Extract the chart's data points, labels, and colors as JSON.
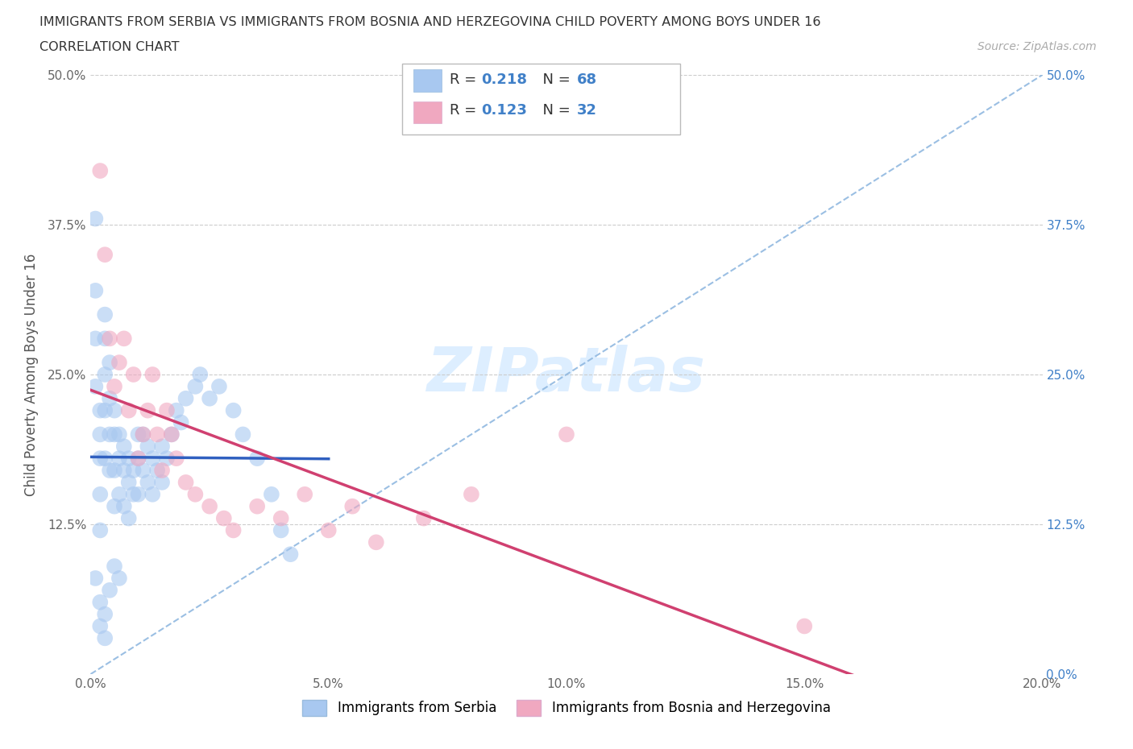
{
  "title_line1": "IMMIGRANTS FROM SERBIA VS IMMIGRANTS FROM BOSNIA AND HERZEGOVINA CHILD POVERTY AMONG BOYS UNDER 16",
  "title_line2": "CORRELATION CHART",
  "source_text": "Source: ZipAtlas.com",
  "ylabel": "Child Poverty Among Boys Under 16",
  "legend_label_serbia": "Immigrants from Serbia",
  "legend_label_bosnia": "Immigrants from Bosnia and Herzegovina",
  "R_serbia": 0.218,
  "N_serbia": 68,
  "R_bosnia": 0.123,
  "N_bosnia": 32,
  "color_serbia": "#a8c8f0",
  "color_bosnia": "#f0a8c0",
  "color_serbia_line": "#3060c0",
  "color_bosnia_line": "#d04070",
  "color_diag": "#90b8e0",
  "color_right_axis": "#4080c8",
  "xlim": [
    0.0,
    0.2
  ],
  "ylim": [
    0.0,
    0.5
  ],
  "xticks": [
    0.0,
    0.05,
    0.1,
    0.15,
    0.2
  ],
  "xticklabels": [
    "0.0%",
    "5.0%",
    "10.0%",
    "15.0%",
    "20.0%"
  ],
  "yticks": [
    0.0,
    0.125,
    0.25,
    0.375,
    0.5
  ],
  "yticklabels_left": [
    "",
    "12.5%",
    "25.0%",
    "37.5%",
    "50.0%"
  ],
  "yticklabels_right": [
    "0.0%",
    "12.5%",
    "25.0%",
    "37.5%",
    "50.0%"
  ],
  "serbia_x": [
    0.001,
    0.001,
    0.001,
    0.001,
    0.002,
    0.002,
    0.002,
    0.002,
    0.002,
    0.003,
    0.003,
    0.003,
    0.003,
    0.003,
    0.004,
    0.004,
    0.004,
    0.004,
    0.005,
    0.005,
    0.005,
    0.005,
    0.006,
    0.006,
    0.006,
    0.007,
    0.007,
    0.007,
    0.008,
    0.008,
    0.008,
    0.009,
    0.009,
    0.01,
    0.01,
    0.01,
    0.011,
    0.011,
    0.012,
    0.012,
    0.013,
    0.013,
    0.014,
    0.015,
    0.015,
    0.016,
    0.017,
    0.018,
    0.019,
    0.02,
    0.022,
    0.023,
    0.025,
    0.027,
    0.03,
    0.032,
    0.035,
    0.038,
    0.04,
    0.042,
    0.001,
    0.002,
    0.002,
    0.003,
    0.003,
    0.004,
    0.005,
    0.006
  ],
  "serbia_y": [
    0.38,
    0.32,
    0.28,
    0.24,
    0.22,
    0.2,
    0.18,
    0.15,
    0.12,
    0.3,
    0.28,
    0.25,
    0.22,
    0.18,
    0.26,
    0.23,
    0.2,
    0.17,
    0.22,
    0.2,
    0.17,
    0.14,
    0.2,
    0.18,
    0.15,
    0.19,
    0.17,
    0.14,
    0.18,
    0.16,
    0.13,
    0.17,
    0.15,
    0.2,
    0.18,
    0.15,
    0.2,
    0.17,
    0.19,
    0.16,
    0.18,
    0.15,
    0.17,
    0.19,
    0.16,
    0.18,
    0.2,
    0.22,
    0.21,
    0.23,
    0.24,
    0.25,
    0.23,
    0.24,
    0.22,
    0.2,
    0.18,
    0.15,
    0.12,
    0.1,
    0.08,
    0.06,
    0.04,
    0.03,
    0.05,
    0.07,
    0.09,
    0.08
  ],
  "bosnia_x": [
    0.002,
    0.003,
    0.004,
    0.005,
    0.006,
    0.007,
    0.008,
    0.009,
    0.01,
    0.011,
    0.012,
    0.013,
    0.014,
    0.015,
    0.016,
    0.017,
    0.018,
    0.02,
    0.022,
    0.025,
    0.028,
    0.03,
    0.035,
    0.04,
    0.045,
    0.05,
    0.055,
    0.06,
    0.07,
    0.08,
    0.1,
    0.15
  ],
  "bosnia_y": [
    0.42,
    0.35,
    0.28,
    0.24,
    0.26,
    0.28,
    0.22,
    0.25,
    0.18,
    0.2,
    0.22,
    0.25,
    0.2,
    0.17,
    0.22,
    0.2,
    0.18,
    0.16,
    0.15,
    0.14,
    0.13,
    0.12,
    0.14,
    0.13,
    0.15,
    0.12,
    0.14,
    0.11,
    0.13,
    0.15,
    0.2,
    0.04
  ]
}
